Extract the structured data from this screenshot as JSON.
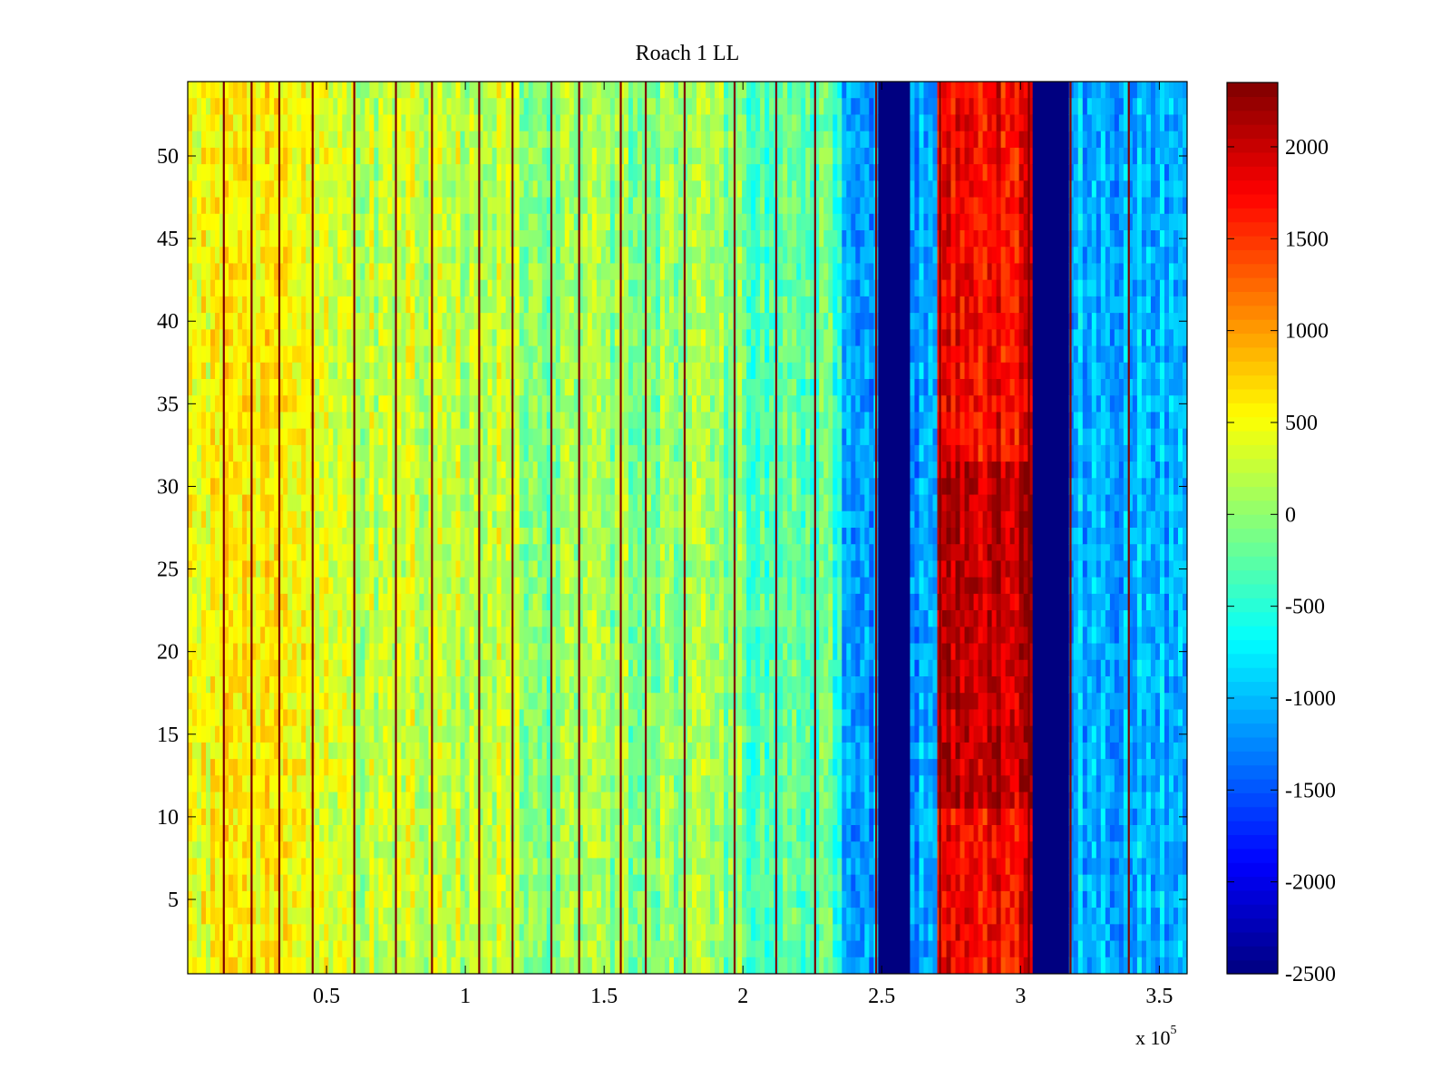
{
  "chart_data": {
    "type": "heatmap",
    "title": "Roach 1 LL",
    "xlabel": "",
    "ylabel": "",
    "x_multiplier_label": "x 10",
    "x_multiplier_exponent": "5",
    "xlim": [
      0,
      3.6
    ],
    "ylim": [
      0.5,
      54.5
    ],
    "x_ticks": [
      0.5,
      1,
      1.5,
      2,
      2.5,
      3,
      3.5
    ],
    "x_tick_labels": [
      "0.5",
      "1",
      "1.5",
      "2",
      "2.5",
      "3",
      "3.5"
    ],
    "y_ticks": [
      5,
      10,
      15,
      20,
      25,
      30,
      35,
      40,
      45,
      50
    ],
    "y_tick_labels": [
      "5",
      "10",
      "15",
      "20",
      "25",
      "30",
      "35",
      "40",
      "45",
      "50"
    ],
    "colormap": "jet",
    "colorbar": {
      "range": [
        -2500,
        2350
      ],
      "ticks": [
        2000,
        1500,
        1000,
        500,
        0,
        -500,
        -1000,
        -1500,
        -2000,
        -2500
      ],
      "tick_labels": [
        "2000",
        "1500",
        "1000",
        "500",
        "0",
        "-500",
        "-1000",
        "-1500",
        "-2000",
        "-2500"
      ]
    },
    "grid": false,
    "bands": [
      {
        "x_start": 0.0,
        "x_end": 0.5,
        "approx_value": 500
      },
      {
        "x_start": 0.5,
        "x_end": 1.2,
        "approx_value": 250
      },
      {
        "x_start": 1.2,
        "x_end": 2.0,
        "approx_value": 0
      },
      {
        "x_start": 2.0,
        "x_end": 2.36,
        "approx_value": -300
      },
      {
        "x_start": 2.36,
        "x_end": 2.49,
        "approx_value": -1200
      },
      {
        "x_start": 2.49,
        "x_end": 2.61,
        "approx_value": -2500
      },
      {
        "x_start": 2.61,
        "x_end": 2.7,
        "approx_value": -1100
      },
      {
        "x_start": 2.7,
        "x_end": 3.04,
        "approx_value": 1800
      },
      {
        "x_start": 3.04,
        "x_end": 3.17,
        "approx_value": -2500
      },
      {
        "x_start": 3.17,
        "x_end": 3.6,
        "approx_value": -1000
      }
    ],
    "stripe_lines_x": [
      0.13,
      0.23,
      0.33,
      0.45,
      0.6,
      0.75,
      0.88,
      1.05,
      1.17,
      1.31,
      1.41,
      1.56,
      1.65,
      1.79,
      1.97,
      2.12,
      2.26,
      2.48,
      2.71,
      3.03,
      3.18,
      3.39
    ]
  }
}
